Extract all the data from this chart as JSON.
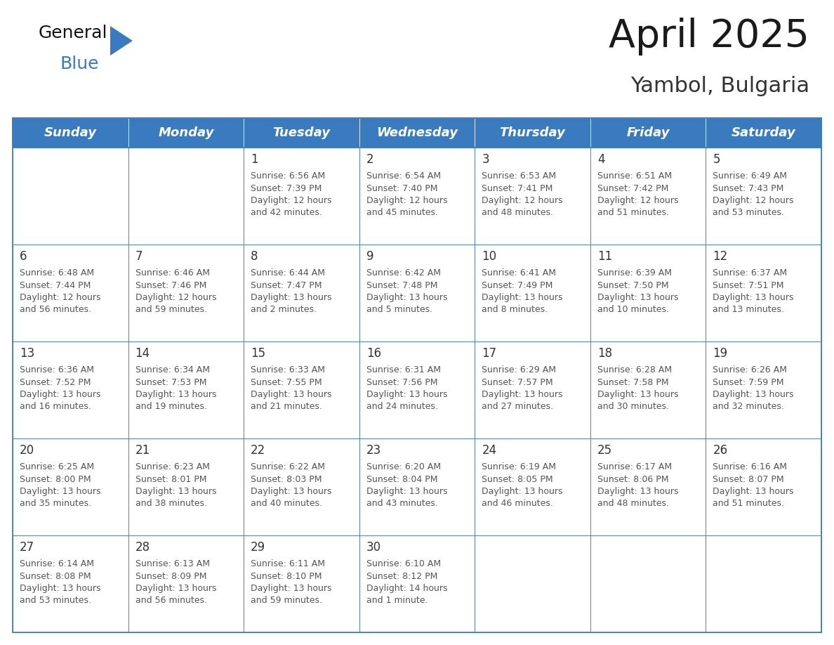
{
  "title": "April 2025",
  "subtitle": "Yambol, Bulgaria",
  "header_color": "#3a7abf",
  "header_text_color": "#ffffff",
  "cell_bg_color": "#ffffff",
  "cell_border_color": "#3a7abf",
  "alt_row_color": "#eef2f7",
  "day_num_color": "#333333",
  "cell_text_color": "#555555",
  "days_of_week": [
    "Sunday",
    "Monday",
    "Tuesday",
    "Wednesday",
    "Thursday",
    "Friday",
    "Saturday"
  ],
  "weeks": [
    [
      {
        "day": "",
        "sunrise": "",
        "sunset": "",
        "daylight": ""
      },
      {
        "day": "",
        "sunrise": "",
        "sunset": "",
        "daylight": ""
      },
      {
        "day": "1",
        "sunrise": "6:56 AM",
        "sunset": "7:39 PM",
        "daylight": "12 hours\nand 42 minutes."
      },
      {
        "day": "2",
        "sunrise": "6:54 AM",
        "sunset": "7:40 PM",
        "daylight": "12 hours\nand 45 minutes."
      },
      {
        "day": "3",
        "sunrise": "6:53 AM",
        "sunset": "7:41 PM",
        "daylight": "12 hours\nand 48 minutes."
      },
      {
        "day": "4",
        "sunrise": "6:51 AM",
        "sunset": "7:42 PM",
        "daylight": "12 hours\nand 51 minutes."
      },
      {
        "day": "5",
        "sunrise": "6:49 AM",
        "sunset": "7:43 PM",
        "daylight": "12 hours\nand 53 minutes."
      }
    ],
    [
      {
        "day": "6",
        "sunrise": "6:48 AM",
        "sunset": "7:44 PM",
        "daylight": "12 hours\nand 56 minutes."
      },
      {
        "day": "7",
        "sunrise": "6:46 AM",
        "sunset": "7:46 PM",
        "daylight": "12 hours\nand 59 minutes."
      },
      {
        "day": "8",
        "sunrise": "6:44 AM",
        "sunset": "7:47 PM",
        "daylight": "13 hours\nand 2 minutes."
      },
      {
        "day": "9",
        "sunrise": "6:42 AM",
        "sunset": "7:48 PM",
        "daylight": "13 hours\nand 5 minutes."
      },
      {
        "day": "10",
        "sunrise": "6:41 AM",
        "sunset": "7:49 PM",
        "daylight": "13 hours\nand 8 minutes."
      },
      {
        "day": "11",
        "sunrise": "6:39 AM",
        "sunset": "7:50 PM",
        "daylight": "13 hours\nand 10 minutes."
      },
      {
        "day": "12",
        "sunrise": "6:37 AM",
        "sunset": "7:51 PM",
        "daylight": "13 hours\nand 13 minutes."
      }
    ],
    [
      {
        "day": "13",
        "sunrise": "6:36 AM",
        "sunset": "7:52 PM",
        "daylight": "13 hours\nand 16 minutes."
      },
      {
        "day": "14",
        "sunrise": "6:34 AM",
        "sunset": "7:53 PM",
        "daylight": "13 hours\nand 19 minutes."
      },
      {
        "day": "15",
        "sunrise": "6:33 AM",
        "sunset": "7:55 PM",
        "daylight": "13 hours\nand 21 minutes."
      },
      {
        "day": "16",
        "sunrise": "6:31 AM",
        "sunset": "7:56 PM",
        "daylight": "13 hours\nand 24 minutes."
      },
      {
        "day": "17",
        "sunrise": "6:29 AM",
        "sunset": "7:57 PM",
        "daylight": "13 hours\nand 27 minutes."
      },
      {
        "day": "18",
        "sunrise": "6:28 AM",
        "sunset": "7:58 PM",
        "daylight": "13 hours\nand 30 minutes."
      },
      {
        "day": "19",
        "sunrise": "6:26 AM",
        "sunset": "7:59 PM",
        "daylight": "13 hours\nand 32 minutes."
      }
    ],
    [
      {
        "day": "20",
        "sunrise": "6:25 AM",
        "sunset": "8:00 PM",
        "daylight": "13 hours\nand 35 minutes."
      },
      {
        "day": "21",
        "sunrise": "6:23 AM",
        "sunset": "8:01 PM",
        "daylight": "13 hours\nand 38 minutes."
      },
      {
        "day": "22",
        "sunrise": "6:22 AM",
        "sunset": "8:03 PM",
        "daylight": "13 hours\nand 40 minutes."
      },
      {
        "day": "23",
        "sunrise": "6:20 AM",
        "sunset": "8:04 PM",
        "daylight": "13 hours\nand 43 minutes."
      },
      {
        "day": "24",
        "sunrise": "6:19 AM",
        "sunset": "8:05 PM",
        "daylight": "13 hours\nand 46 minutes."
      },
      {
        "day": "25",
        "sunrise": "6:17 AM",
        "sunset": "8:06 PM",
        "daylight": "13 hours\nand 48 minutes."
      },
      {
        "day": "26",
        "sunrise": "6:16 AM",
        "sunset": "8:07 PM",
        "daylight": "13 hours\nand 51 minutes."
      }
    ],
    [
      {
        "day": "27",
        "sunrise": "6:14 AM",
        "sunset": "8:08 PM",
        "daylight": "13 hours\nand 53 minutes."
      },
      {
        "day": "28",
        "sunrise": "6:13 AM",
        "sunset": "8:09 PM",
        "daylight": "13 hours\nand 56 minutes."
      },
      {
        "day": "29",
        "sunrise": "6:11 AM",
        "sunset": "8:10 PM",
        "daylight": "13 hours\nand 59 minutes."
      },
      {
        "day": "30",
        "sunrise": "6:10 AM",
        "sunset": "8:12 PM",
        "daylight": "14 hours\nand 1 minute."
      },
      {
        "day": "",
        "sunrise": "",
        "sunset": "",
        "daylight": ""
      },
      {
        "day": "",
        "sunrise": "",
        "sunset": "",
        "daylight": ""
      },
      {
        "day": "",
        "sunrise": "",
        "sunset": "",
        "daylight": ""
      }
    ]
  ],
  "logo_text1": "General",
  "logo_text2": "Blue",
  "logo_color1": "#111111",
  "logo_color2": "#3a7abf",
  "logo_triangle_color": "#3a7abf",
  "title_fontsize": 40,
  "subtitle_fontsize": 22,
  "header_fontsize": 13,
  "day_num_fontsize": 12,
  "cell_text_fontsize": 9
}
